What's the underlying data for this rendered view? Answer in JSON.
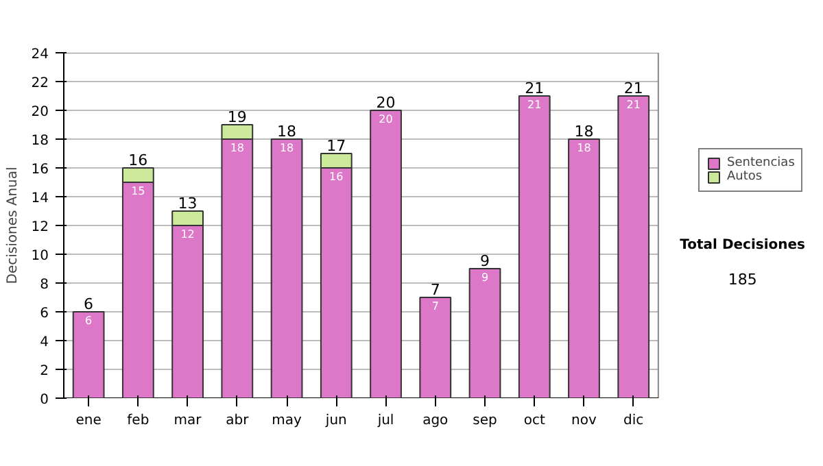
{
  "chart_data": {
    "type": "bar",
    "stacked": true,
    "ylabel": "Decisiones Anual",
    "categories": [
      "ene",
      "feb",
      "mar",
      "abr",
      "may",
      "jun",
      "jul",
      "ago",
      "sep",
      "oct",
      "nov",
      "dic"
    ],
    "series": [
      {
        "name": "Sentencias",
        "color": "#dd77c8",
        "values": [
          6,
          15,
          12,
          18,
          18,
          16,
          20,
          7,
          9,
          21,
          18,
          21
        ],
        "value_labels": [
          "6",
          "15",
          "12",
          "18",
          "18",
          "16",
          "20",
          "7",
          "9",
          "21",
          "18",
          "21"
        ]
      },
      {
        "name": "Autos",
        "color": "#cce89a",
        "values": [
          0,
          1,
          1,
          1,
          0,
          1,
          0,
          0,
          0,
          0,
          0,
          0
        ]
      }
    ],
    "totals": [
      "6",
      "16",
      "13",
      "19",
      "18",
      "17",
      "20",
      "7",
      "9",
      "21",
      "18",
      "21"
    ],
    "ylim": [
      0,
      24
    ],
    "yticks": [
      0,
      2,
      4,
      6,
      8,
      10,
      12,
      14,
      16,
      18,
      20,
      22,
      24
    ],
    "grid": "y",
    "legend": "right",
    "annotations": [
      "Total Decisiones",
      "185"
    ]
  }
}
